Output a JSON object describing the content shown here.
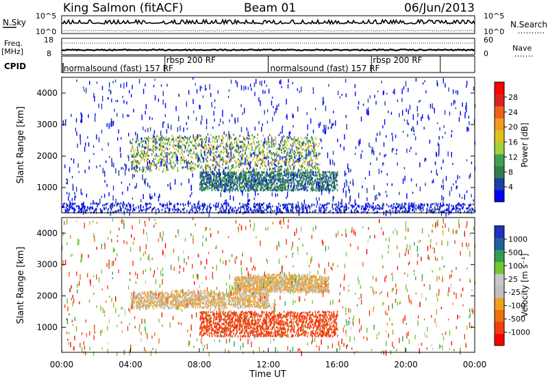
{
  "header": {
    "station": "King Salmon (fitACF)",
    "beam": "Beam 01",
    "date": "06/Jun/2013"
  },
  "top_panels": {
    "nsky_label": "N.Sky",
    "nsky_tick_top": "10^5",
    "nsky_tick_bottom": "10^0",
    "nsearch_label": "N.Search",
    "nsearch_tick_top": "10^5",
    "nsearch_tick_bottom": "10^0",
    "freq_label": "Freq.",
    "freq_unit": "[MHz]",
    "freq_tick_top": "18",
    "freq_tick_bottom": "8",
    "nave_label": "Nave",
    "nave_tick_top": "60",
    "nave_tick_bottom": "0",
    "cpid_label": "CPID",
    "cpid_segments": [
      {
        "label": "normalsound (fast) 157 RF",
        "start_hour": 0.0
      },
      {
        "label": "rbsp 200 RF",
        "start_hour": 6.0
      },
      {
        "label": "normalsound (fast) 157 RF",
        "start_hour": 12.0
      },
      {
        "label": "rbsp 200 RF",
        "start_hour": 18.0
      }
    ],
    "cpid_boundaries_hours": [
      6.0,
      12.0,
      18.0,
      22.0
    ]
  },
  "colors": {
    "power_scale": [
      "#0000ff",
      "#1e3fa6",
      "#2f7f4f",
      "#3fa24f",
      "#a3d23c",
      "#e0c020",
      "#f09a20",
      "#f06020",
      "#e02020",
      "#ff0000"
    ],
    "velocity_scale": [
      "#2030c0",
      "#2060a0",
      "#30a050",
      "#70c830",
      "#c8c8c8",
      "#c0c0c0",
      "#f0a020",
      "#f07010",
      "#f04010",
      "#ff0000"
    ],
    "ground_scatter": "#a0a0a0"
  },
  "chart_data": [
    {
      "type": "heatmap",
      "title": "Power",
      "xlabel": "",
      "ylabel": "Slant Range [km]",
      "xlim_hours": [
        0,
        24
      ],
      "ylim": [
        200,
        4500
      ],
      "y_ticks": [
        "1000",
        "2000",
        "3000",
        "4000"
      ],
      "colorbar_label": "Power [dB]",
      "colorbar_ticks": [
        "4",
        "8",
        "12",
        "16",
        "20",
        "24",
        "28"
      ],
      "features": [
        {
          "name": "main scatter band",
          "time_hours": [
            4.0,
            15.0
          ],
          "range_km": [
            1500,
            2600
          ],
          "value_db": [
            6,
            22
          ]
        },
        {
          "name": "lower band",
          "time_hours": [
            8.0,
            16.0
          ],
          "range_km": [
            900,
            1500
          ],
          "value_db": [
            6,
            12
          ]
        },
        {
          "name": "near-range noise",
          "time_hours": [
            0,
            24
          ],
          "range_km": [
            200,
            500
          ],
          "value_db": [
            2,
            8
          ]
        }
      ]
    },
    {
      "type": "heatmap",
      "title": "Velocity",
      "xlabel": "Time UT",
      "ylabel": "Slant Range [km]",
      "xlim_hours": [
        0,
        24
      ],
      "ylim": [
        200,
        4500
      ],
      "x_ticks": [
        "00:00",
        "04:00",
        "08:00",
        "12:00",
        "16:00",
        "20:00",
        "00:00"
      ],
      "y_ticks": [
        "1000",
        "2000",
        "3000",
        "4000"
      ],
      "colorbar_label": "Velocity [m s⁻¹]",
      "colorbar_ticks": [
        "1000",
        "500",
        "100",
        "25",
        "-25",
        "-100",
        "-500",
        "-1000"
      ],
      "features": [
        {
          "name": "ground scatter band",
          "time_hours": [
            4.0,
            12.0
          ],
          "range_km": [
            1600,
            2100
          ],
          "velocity": [
            -25,
            25
          ]
        },
        {
          "name": "upper band",
          "time_hours": [
            10.0,
            15.5
          ],
          "range_km": [
            2100,
            2600
          ],
          "velocity": [
            -25,
            25
          ]
        },
        {
          "name": "receding band",
          "time_hours": [
            8.0,
            16.0
          ],
          "range_km": [
            700,
            1500
          ],
          "velocity": [
            -500,
            -100
          ]
        }
      ]
    }
  ]
}
